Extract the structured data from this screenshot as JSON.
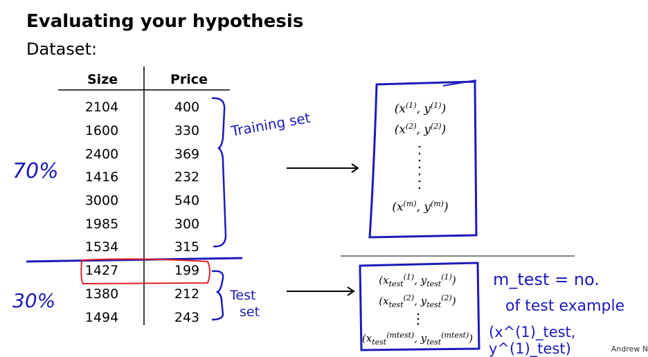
{
  "heading": {
    "title": "Evaluating your hypothesis",
    "subtitle": "Dataset:"
  },
  "table": {
    "headers": [
      "Size",
      "Price"
    ],
    "rows": [
      [
        "2104",
        "400"
      ],
      [
        "1600",
        "330"
      ],
      [
        "2400",
        "369"
      ],
      [
        "1416",
        "232"
      ],
      [
        "3000",
        "540"
      ],
      [
        "1985",
        "300"
      ],
      [
        "1534",
        "315"
      ],
      [
        "1427",
        "199"
      ],
      [
        "1380",
        "212"
      ],
      [
        "1494",
        "243"
      ]
    ]
  },
  "annotations": {
    "pct_train": "70%",
    "pct_test": "30%",
    "training_label": "Training set",
    "test_label_1": "Test",
    "test_label_2": "set",
    "mtest_line1": "m_test = no.",
    "mtest_line2": "of test example",
    "mtest_line3": "(x^(1)_test, y^(1)_test)"
  },
  "train_box": {
    "first": "(x(1), y(1))",
    "second": "(x(2), y(2))",
    "last": "(x(m), y(m))"
  },
  "test_box": {
    "first": "(x(1)test, y(1)test)",
    "second": "(x(2)test, y(2)test)",
    "last": "(x(mtest)test, y(mtest)test)"
  },
  "credit": "Andrew N",
  "colors": {
    "ink_blue": "#1a1ab8",
    "ink_red": "#e0202a"
  }
}
